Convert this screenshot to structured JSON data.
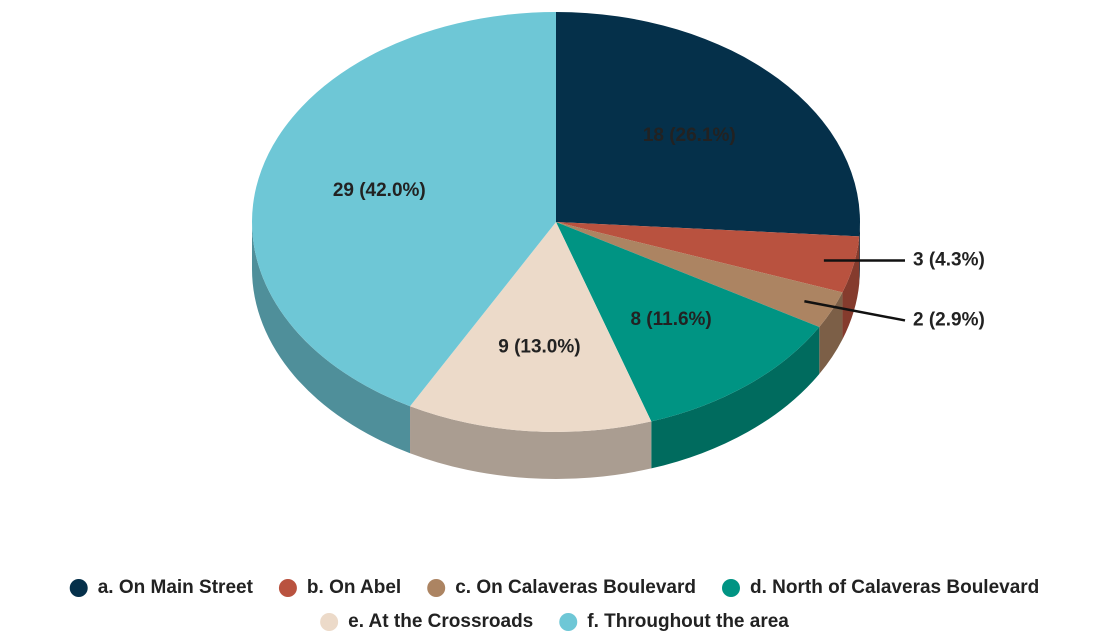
{
  "chart_data": {
    "type": "pie3d",
    "categories": [
      "a. On Main Street",
      "b. On Abel",
      "c. On Calaveras Boulevard",
      "d. North of Calaveras Boulevard",
      "e. At the Crossroads",
      "f. Throughout the area"
    ],
    "values": [
      18,
      3,
      2,
      8,
      9,
      29
    ],
    "value_labels": [
      "18 (26.1%)",
      "3 (4.3%)",
      "2 (2.9%)",
      "8 (11.6%)",
      "9 (13.0%)",
      "29 (42.0%)"
    ],
    "colors": [
      "#05304a",
      "#b9523f",
      "#ac8462",
      "#009483",
      "#ecdac9",
      "#6ec7d6"
    ],
    "legend": "bottom"
  }
}
